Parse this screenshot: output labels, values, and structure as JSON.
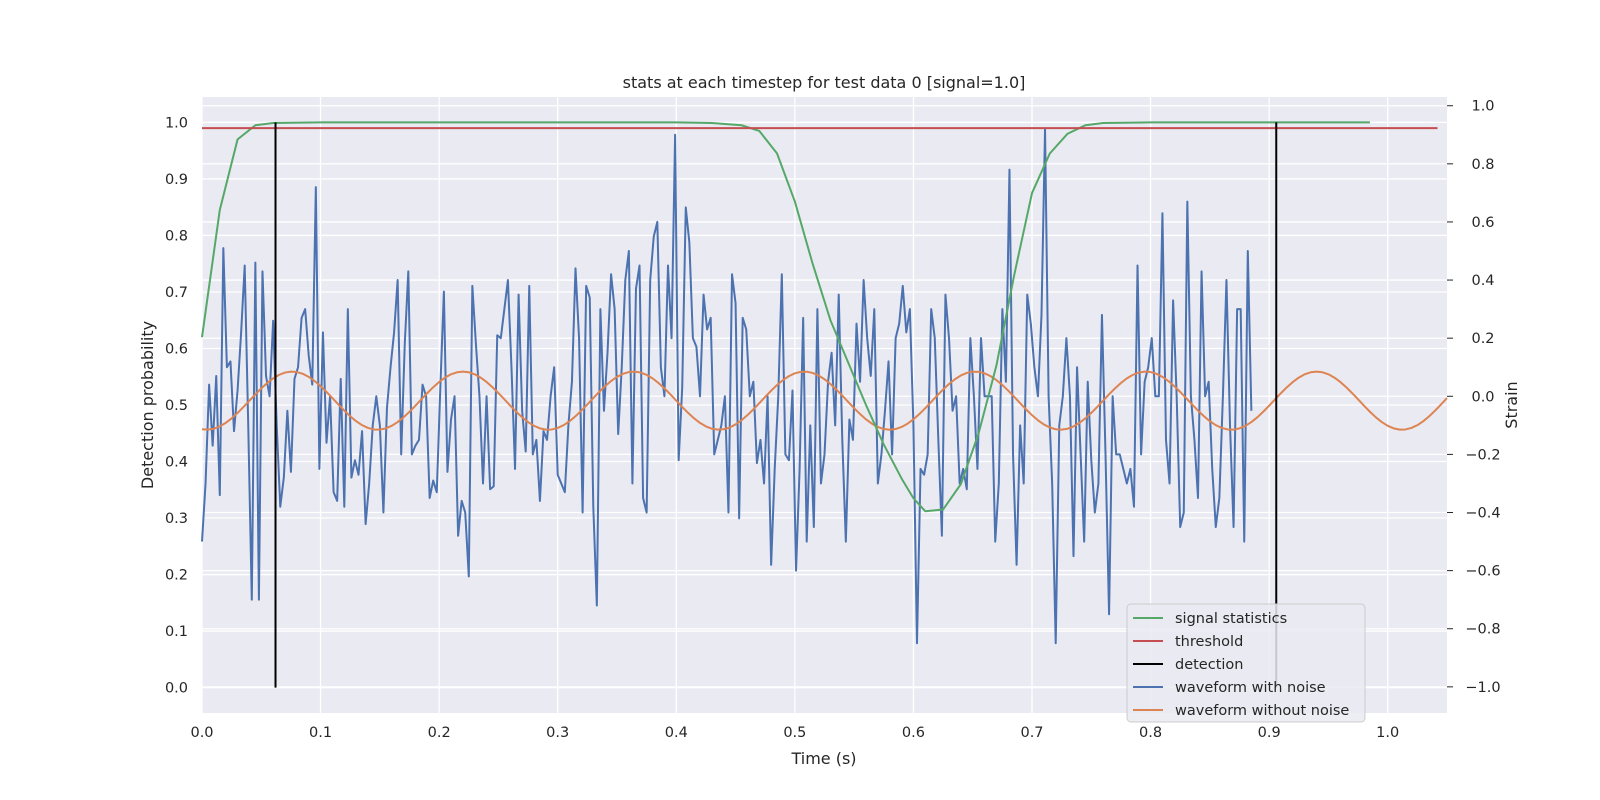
{
  "chart_data": {
    "type": "line",
    "title": "stats at each timestep for test data 0 [signal=1.0]",
    "xlabel": "Time (s)",
    "ylabel_left": "Detection probability",
    "ylabel_right": "Strain",
    "xlim": [
      0.0,
      1.05
    ],
    "ylim_left": [
      -0.045,
      1.045
    ],
    "ylim_right": [
      -1.09,
      1.03
    ],
    "x_ticks": [
      "0.0",
      "0.1",
      "0.2",
      "0.3",
      "0.4",
      "0.5",
      "0.6",
      "0.7",
      "0.8",
      "0.9",
      "1.0"
    ],
    "y_ticks_left": [
      "0.0",
      "0.1",
      "0.2",
      "0.3",
      "0.4",
      "0.5",
      "0.6",
      "0.7",
      "0.8",
      "0.9",
      "1.0"
    ],
    "y_ticks_right": [
      "−1.0",
      "−0.8",
      "−0.6",
      "−0.4",
      "−0.2",
      "0.0",
      "0.2",
      "0.4",
      "0.6",
      "0.8",
      "1.0"
    ],
    "grid": true,
    "legend_position": "lower-right",
    "colors": {
      "signal": "#55a868",
      "threshold": "#c44e52",
      "detection": "#000000",
      "noisy": "#4c72b0",
      "clean": "#dd8452",
      "plot_bg": "#eaeaf2",
      "grid": "#ffffff"
    },
    "legend": [
      "signal statistics",
      "threshold",
      "detection",
      "waveform with noise",
      "waveform without noise"
    ],
    "series": [
      {
        "name": "signal statistics",
        "axis": "left",
        "points": [
          [
            0.0,
            0.62
          ],
          [
            0.015,
            0.845
          ],
          [
            0.03,
            0.97
          ],
          [
            0.045,
            0.995
          ],
          [
            0.06,
            0.999
          ],
          [
            0.1,
            1.0
          ],
          [
            0.2,
            1.0
          ],
          [
            0.3,
            1.0
          ],
          [
            0.4,
            1.0
          ],
          [
            0.43,
            0.999
          ],
          [
            0.455,
            0.995
          ],
          [
            0.47,
            0.985
          ],
          [
            0.485,
            0.945
          ],
          [
            0.5,
            0.86
          ],
          [
            0.515,
            0.75
          ],
          [
            0.53,
            0.65
          ],
          [
            0.545,
            0.575
          ],
          [
            0.56,
            0.5
          ],
          [
            0.575,
            0.43
          ],
          [
            0.59,
            0.37
          ],
          [
            0.6,
            0.335
          ],
          [
            0.61,
            0.312
          ],
          [
            0.625,
            0.315
          ],
          [
            0.64,
            0.36
          ],
          [
            0.655,
            0.45
          ],
          [
            0.67,
            0.57
          ],
          [
            0.685,
            0.73
          ],
          [
            0.7,
            0.875
          ],
          [
            0.715,
            0.945
          ],
          [
            0.73,
            0.98
          ],
          [
            0.745,
            0.995
          ],
          [
            0.76,
            0.999
          ],
          [
            0.8,
            1.0
          ],
          [
            0.9,
            1.0
          ],
          [
            0.985,
            1.0
          ]
        ]
      },
      {
        "name": "threshold",
        "axis": "left",
        "points": [
          [
            0.0,
            0.99
          ],
          [
            1.042,
            0.99
          ]
        ]
      },
      {
        "name": "detection",
        "axis": "left",
        "vlines": [
          0.062,
          0.906
        ],
        "ymin": 0.0,
        "ymax": 1.0
      },
      {
        "name": "waveform with noise",
        "axis": "right",
        "x_start": 0.0,
        "x_step": 0.003,
        "values": [
          -0.5,
          -0.3,
          0.04,
          -0.17,
          0.07,
          -0.34,
          0.51,
          0.1,
          0.12,
          -0.12,
          0.02,
          0.22,
          0.45,
          -0.1,
          -0.7,
          0.46,
          -0.7,
          0.43,
          0.07,
          0.0,
          0.26,
          -0.1,
          -0.38,
          -0.28,
          -0.05,
          -0.26,
          0.06,
          0.1,
          0.27,
          0.3,
          0.14,
          0.04,
          0.72,
          -0.25,
          0.22,
          -0.16,
          0.0,
          -0.33,
          -0.36,
          0.06,
          -0.38,
          0.3,
          -0.28,
          -0.22,
          -0.27,
          -0.12,
          -0.44,
          -0.3,
          -0.1,
          0.0,
          -0.1,
          -0.4,
          -0.04,
          0.1,
          0.22,
          0.4,
          -0.2,
          0.18,
          0.43,
          -0.2,
          -0.17,
          -0.15,
          0.04,
          0.0,
          -0.35,
          -0.29,
          -0.33,
          0.03,
          0.36,
          -0.26,
          -0.08,
          0.0,
          -0.48,
          -0.36,
          -0.4,
          -0.62,
          0.38,
          0.18,
          0.0,
          -0.3,
          0.0,
          -0.32,
          -0.31,
          0.21,
          0.2,
          0.3,
          0.4,
          0.1,
          -0.25,
          0.35,
          -0.05,
          -0.19,
          0.38,
          -0.2,
          -0.15,
          -0.36,
          -0.12,
          -0.15,
          0.0,
          0.1,
          -0.27,
          -0.3,
          -0.33,
          -0.1,
          0.05,
          0.44,
          0.2,
          -0.4,
          0.38,
          0.34,
          -0.38,
          -0.72,
          0.3,
          -0.05,
          0.15,
          0.42,
          0.3,
          -0.13,
          0.1,
          0.4,
          0.5,
          -0.3,
          0.37,
          0.45,
          -0.35,
          -0.4,
          0.4,
          0.55,
          0.6,
          0.1,
          0.0,
          0.45,
          0.2,
          0.9,
          -0.22,
          0.03,
          0.65,
          0.53,
          0.2,
          0.17,
          0.0,
          0.35,
          0.23,
          0.27,
          -0.2,
          -0.15,
          -0.1,
          0.0,
          -0.4,
          0.42,
          0.32,
          -0.42,
          0.27,
          0.23,
          0.0,
          0.05,
          -0.23,
          -0.15,
          -0.3,
          0.0,
          -0.58,
          -0.25,
          0.0,
          0.42,
          -0.2,
          -0.22,
          0.02,
          -0.6,
          -0.25,
          0.27,
          -0.5,
          -0.1,
          -0.45,
          0.3,
          -0.3,
          -0.2,
          0.05,
          0.15,
          -0.1,
          0.35,
          -0.15,
          -0.5,
          -0.08,
          -0.15,
          0.25,
          0.05,
          0.4,
          0.2,
          0.07,
          0.3,
          -0.3,
          -0.2,
          -0.05,
          0.12,
          -0.2,
          0.2,
          0.25,
          0.38,
          0.22,
          0.3,
          -0.1,
          -0.85,
          -0.25,
          -0.27,
          -0.2,
          0.3,
          0.2,
          -0.15,
          -0.48,
          0.35,
          0.2,
          -0.05,
          0.0,
          -0.3,
          -0.25,
          -0.32,
          0.2,
          0.0,
          -0.25,
          0.2,
          0.0,
          0.0,
          0.0,
          -0.5,
          -0.3,
          0.3,
          0.05,
          0.78,
          -0.2,
          -0.58,
          -0.1,
          -0.3,
          0.35,
          0.25,
          0.1,
          0.0,
          0.28,
          0.92,
          0.0,
          -0.3,
          -0.85,
          -0.1,
          0.0,
          0.2,
          0.0,
          -0.55,
          0.1,
          -0.2,
          -0.5,
          0.05,
          -0.22,
          -0.4,
          -0.3,
          0.28,
          -0.2,
          -0.75,
          0.0,
          -0.2,
          -0.2,
          -0.25,
          -0.3,
          -0.25,
          -0.38,
          0.45,
          -0.2,
          0.05,
          0.1,
          0.2,
          0.0,
          0.0,
          0.63,
          -0.15,
          -0.3,
          0.33,
          0.0,
          -0.45,
          -0.4,
          0.67,
          0.0,
          -0.15,
          -0.35,
          0.43,
          0.0,
          0.05,
          -0.25,
          -0.45,
          -0.35,
          0.0,
          0.4,
          -0.1,
          -0.45,
          0.3,
          0.3,
          -0.5,
          0.5,
          -0.05
        ]
      },
      {
        "name": "waveform without noise",
        "axis": "right",
        "x_start": 0.0,
        "x_step": 0.005,
        "amplitude": 0.1,
        "offset": -0.015,
        "period": 0.144,
        "phase_zero_x": 0.04
      }
    ]
  }
}
